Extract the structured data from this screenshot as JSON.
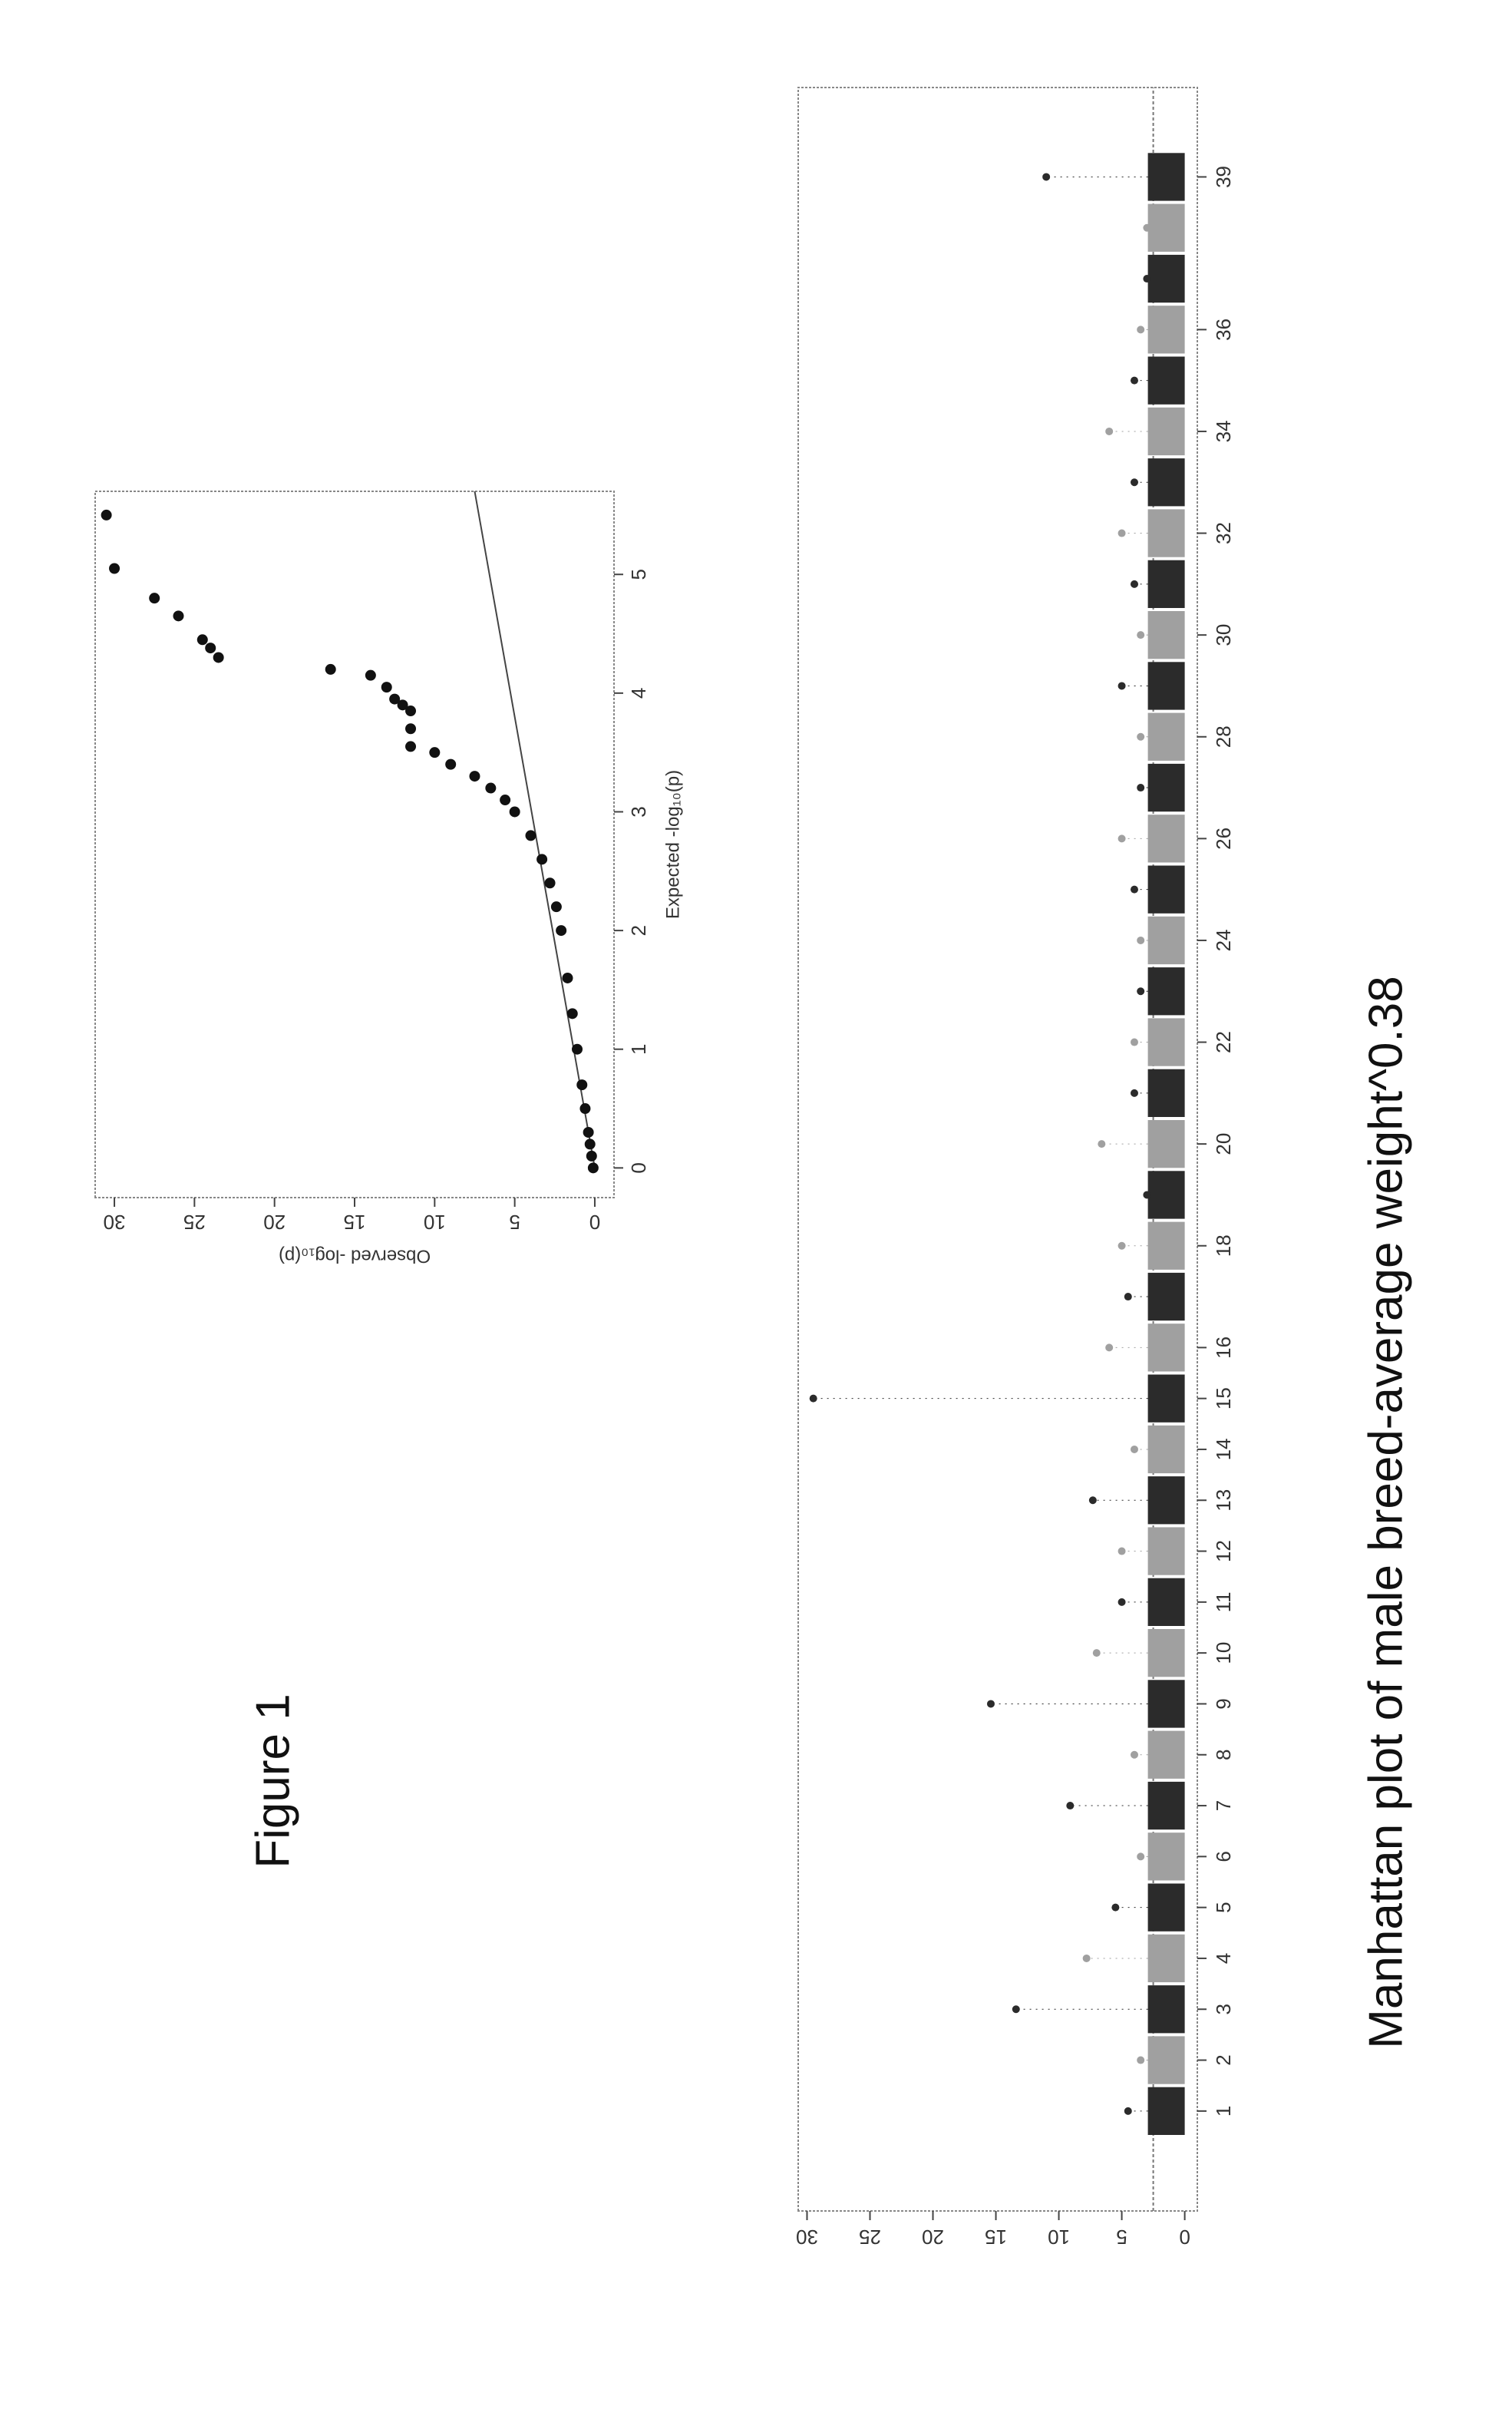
{
  "figure_label": "Figure 1",
  "chart_data": [
    {
      "type": "scatter",
      "x_label": "Expected -log₁₀(p)",
      "y_label": "Observed -log₁₀(p)",
      "x": [
        0,
        0.1,
        0.2,
        0.3,
        0.5,
        0.7,
        1,
        1.3,
        1.6,
        2,
        2.2,
        2.4,
        2.6,
        2.8,
        3,
        3.1,
        3.2,
        3.3,
        3.4,
        3.5,
        3.55,
        3.7,
        3.85,
        3.9,
        3.95,
        4.05,
        4.15,
        4.2,
        4.3,
        4.38,
        4.45,
        4.65,
        4.8,
        5.05,
        5.5
      ],
      "y": [
        0.1,
        0.2,
        0.3,
        0.4,
        0.6,
        0.8,
        1.1,
        1.4,
        1.7,
        2.1,
        2.4,
        2.8,
        3.3,
        4,
        5,
        5.6,
        6.5,
        7.5,
        9,
        10,
        11.5,
        11.5,
        11.5,
        12,
        12.5,
        13,
        14,
        16.5,
        23.5,
        24,
        24.5,
        26,
        27.5,
        30,
        30.5
      ],
      "color": "#111111",
      "line": {
        "x": [
          0,
          5.7
        ],
        "y": [
          0,
          7.5
        ]
      },
      "xlim": [
        -0.25,
        5.7
      ],
      "ylim": [
        -1.2,
        31.2
      ],
      "xticks": [
        0,
        1,
        2,
        3,
        4,
        5
      ],
      "yticks": [
        0,
        5,
        10,
        15,
        20,
        25,
        30
      ]
    },
    {
      "type": "manhattan",
      "title": "Manhattan plot of male breed-average weight^0.38",
      "categories": [
        "1",
        "2",
        "3",
        "4",
        "5",
        "6",
        "7",
        "8",
        "9",
        "10",
        "11",
        "12",
        "13",
        "14",
        "15",
        "16",
        null,
        "18",
        null,
        "20",
        null,
        "22",
        null,
        "24",
        null,
        "26",
        null,
        "28",
        null,
        "30",
        null,
        "32",
        null,
        "34",
        null,
        "36",
        null,
        null,
        "39"
      ],
      "values": [
        4.5,
        3.5,
        13.4,
        7.8,
        5.5,
        3.5,
        9.1,
        4,
        15.4,
        7,
        5,
        5,
        7.3,
        4,
        29.5,
        6,
        4.5,
        5,
        3,
        6.6,
        4,
        4,
        3.5,
        3.5,
        4,
        5,
        3.5,
        3.5,
        5,
        3.5,
        4,
        5,
        4,
        6,
        4,
        3.5,
        3,
        3,
        11
      ],
      "colors": [
        "#2b2b2b",
        "#a0a0a0"
      ],
      "threshold": 2.5,
      "ylim": [
        -1,
        30.7
      ],
      "yticks": [
        0,
        5,
        10,
        15,
        20,
        25,
        30
      ]
    }
  ]
}
